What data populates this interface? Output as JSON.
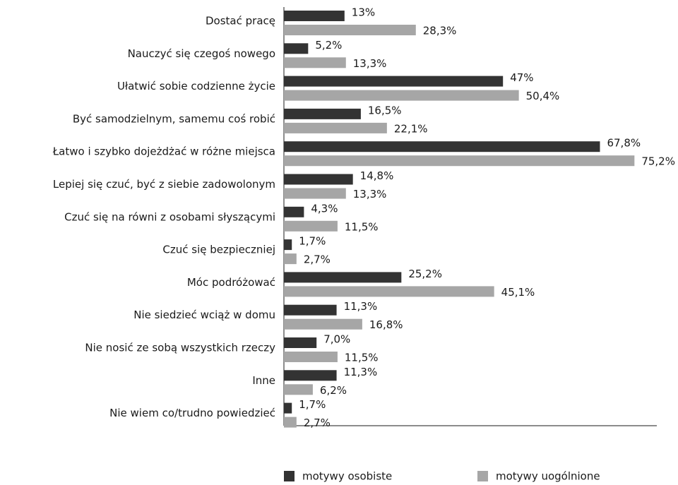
{
  "chart_data": {
    "type": "bar",
    "orientation": "horizontal",
    "categories": [
      "Dostać pracę",
      "Nauczyć się czegoś nowego",
      "Ułatwić sobie codzienne życie",
      "Być samodzielnym, samemu coś robić",
      "Łatwo i szybko dojeżdżać w różne miejsca",
      "Lepiej się czuć, być z siebie zadowolonym",
      "Czuć się na równi z osobami słyszącymi",
      "Czuć się bezpieczniej",
      "Móc podróżować",
      "Nie siedzieć wciąż w domu",
      "Nie nosić ze sobą wszystkich rzeczy",
      "Inne",
      "Nie wiem co/trudno powiedzieć"
    ],
    "series": [
      {
        "name": "motywy osobiste",
        "color": "#333333",
        "values": [
          13,
          5.2,
          47,
          16.5,
          67.8,
          14.8,
          4.3,
          1.7,
          25.2,
          11.3,
          7.0,
          11.3,
          1.7
        ],
        "value_labels": [
          "13%",
          "5,2%",
          "47%",
          "16,5%",
          "67,8%",
          "14,8%",
          "4,3%",
          "1,7%",
          "25,2%",
          "11,3%",
          "7,0%",
          "11,3%",
          "1,7%"
        ]
      },
      {
        "name": "motywy uogólnione",
        "color": "#a6a6a6",
        "values": [
          28.3,
          13.3,
          50.4,
          22.1,
          75.2,
          13.3,
          11.5,
          2.7,
          45.1,
          16.8,
          11.5,
          6.2,
          2.7
        ],
        "value_labels": [
          "28,3%",
          "13,3%",
          "50,4%",
          "22,1%",
          "75,2%",
          "13,3%",
          "11,5%",
          "2,7%",
          "45,1%",
          "16,8%",
          "11,5%",
          "6,2%",
          "2,7%"
        ]
      }
    ],
    "xlim": [
      0,
      80
    ],
    "legend": "bottom"
  }
}
